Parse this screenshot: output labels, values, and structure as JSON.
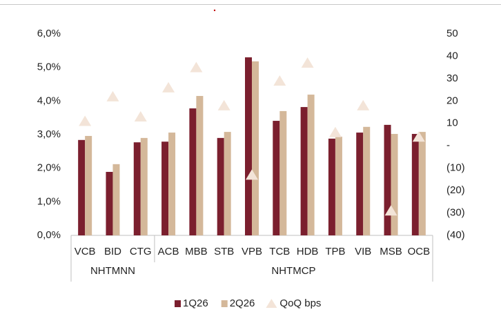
{
  "chart_data": {
    "type": "bar",
    "groups": [
      {
        "name": "NHTMNN",
        "categories": [
          "VCB",
          "BID",
          "CTG"
        ]
      },
      {
        "name": "NHTMCP",
        "categories": [
          "ACB",
          "MBB",
          "STB",
          "VPB",
          "TCB",
          "HDB",
          "TPB",
          "VIB",
          "MSB",
          "OCB"
        ]
      }
    ],
    "series": [
      {
        "name": "1Q26",
        "color": "#7b1f2e",
        "values": [
          2.84,
          1.89,
          2.77,
          2.79,
          3.78,
          2.9,
          5.3,
          3.41,
          3.82,
          2.88,
          3.06,
          3.29,
          3.02
        ]
      },
      {
        "name": "2Q26",
        "color": "#d4b89a",
        "values": [
          2.96,
          2.12,
          2.9,
          3.06,
          4.15,
          3.08,
          5.18,
          3.7,
          4.19,
          2.94,
          3.23,
          3.02,
          3.08
        ]
      },
      {
        "name": "QoQ bps",
        "color": "#f3e4d8",
        "marker": "triangle",
        "axis": "y2",
        "values": [
          11,
          22,
          13,
          26,
          35,
          18,
          -13,
          29,
          37,
          6,
          18,
          -29,
          4
        ]
      }
    ],
    "ylim": [
      0,
      6
    ],
    "yticks": [
      {
        "value": 0,
        "label": "0,0%"
      },
      {
        "value": 1,
        "label": "1,0%"
      },
      {
        "value": 2,
        "label": "2,0%"
      },
      {
        "value": 3,
        "label": "3,0%"
      },
      {
        "value": 4,
        "label": "4,0%"
      },
      {
        "value": 5,
        "label": "5,0%"
      },
      {
        "value": 6,
        "label": "6,0%"
      }
    ],
    "y2lim": [
      -40,
      50
    ],
    "y2ticks": [
      {
        "value": -40,
        "label": "(40)"
      },
      {
        "value": -30,
        "label": "(30)"
      },
      {
        "value": -20,
        "label": "(20)"
      },
      {
        "value": -10,
        "label": "(10)"
      },
      {
        "value": 0,
        "label": "-"
      },
      10,
      20,
      30,
      40,
      50
    ],
    "grid": false,
    "legend": "bottom"
  }
}
